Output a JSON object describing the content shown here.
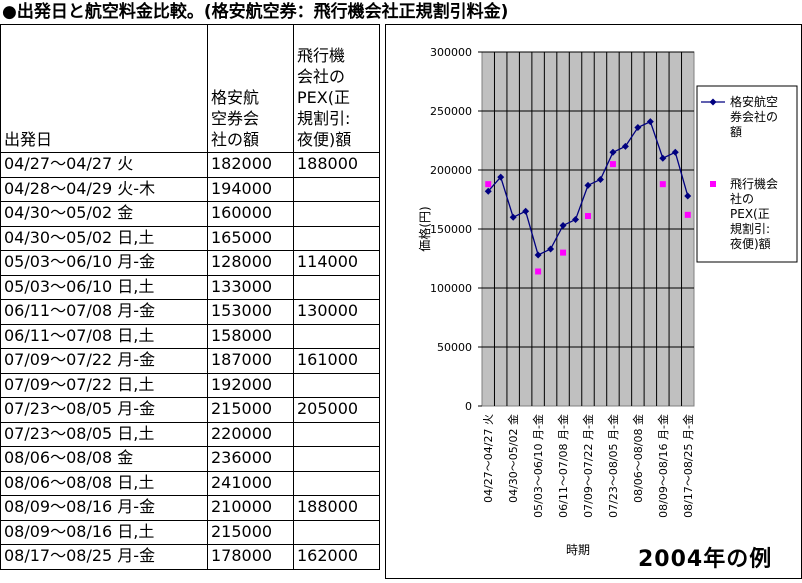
{
  "title": "●出発日と航空料金比較。(格安航空券：飛行機会社正規割引料金)",
  "table": {
    "headers": [
      "出発日",
      "格安航\n空券会\n社の額",
      "飛行機\n会社の\nPEX(正\n規割引:\n夜便)額"
    ],
    "rows": [
      [
        "04/27〜04/27 火",
        "182000",
        "188000"
      ],
      [
        "04/28〜04/29 火-木",
        "194000",
        ""
      ],
      [
        "04/30〜05/02 金",
        "160000",
        ""
      ],
      [
        "04/30〜05/02 日,土",
        "165000",
        ""
      ],
      [
        "05/03〜06/10 月-金",
        "128000",
        "114000"
      ],
      [
        "05/03〜06/10 日,土",
        "133000",
        ""
      ],
      [
        "06/11〜07/08 月-金",
        "153000",
        "130000"
      ],
      [
        "06/11〜07/08 日,土",
        "158000",
        ""
      ],
      [
        "07/09〜07/22 月-金",
        "187000",
        "161000"
      ],
      [
        "07/09〜07/22 日,土",
        "192000",
        ""
      ],
      [
        "07/23〜08/05 月-金",
        "215000",
        "205000"
      ],
      [
        "07/23〜08/05 日,土",
        "220000",
        ""
      ],
      [
        "08/06〜08/08 金",
        "236000",
        ""
      ],
      [
        "08/06〜08/08 日,土",
        "241000",
        ""
      ],
      [
        "08/09〜08/16 月-金",
        "210000",
        "188000"
      ],
      [
        "08/09〜08/16 日,土",
        "215000",
        ""
      ],
      [
        "08/17〜08/25 月-金",
        "178000",
        "162000"
      ]
    ]
  },
  "chart_data": {
    "type": "line",
    "xlabel": "時期",
    "ylabel": "価格(円)",
    "ylim": [
      0,
      300000
    ],
    "yticks": [
      "0",
      "50000",
      "100000",
      "150000",
      "200000",
      "250000",
      "300000"
    ],
    "x_tick_labels": [
      "04/27〜04/27 火",
      "04/30〜05/02 金",
      "05/03〜06/10 月-金",
      "06/11〜07/08 月-金",
      "07/09〜07/22 月-金",
      "07/23〜08/05 月-金",
      "08/06〜08/08 金",
      "08/09〜08/16 月-金",
      "08/17〜08/25 月-金"
    ],
    "categories": [
      "04/27〜04/27 火",
      "04/28〜04/29 火-木",
      "04/30〜05/02 金",
      "04/30〜05/02 日,土",
      "05/03〜06/10 月-金",
      "05/03〜06/10 日,土",
      "06/11〜07/08 月-金",
      "06/11〜07/08 日,土",
      "07/09〜07/22 月-金",
      "07/09〜07/22 日,土",
      "07/23〜08/05 月-金",
      "07/23〜08/05 日,土",
      "08/06〜08/08 金",
      "08/06〜08/08 日,土",
      "08/09〜08/16 月-金",
      "08/09〜08/16 日,土",
      "08/17〜08/25 月-金"
    ],
    "series": [
      {
        "name": "格安航空券会社の額",
        "color": "#000080",
        "marker": "diamond",
        "line": true,
        "values": [
          182000,
          194000,
          160000,
          165000,
          128000,
          133000,
          153000,
          158000,
          187000,
          192000,
          215000,
          220000,
          236000,
          241000,
          210000,
          215000,
          178000
        ]
      },
      {
        "name": "飛行機会社のPEX(正規割引:夜便)額",
        "color": "#ff00ff",
        "marker": "square",
        "line": false,
        "values": [
          188000,
          null,
          null,
          null,
          114000,
          null,
          130000,
          null,
          161000,
          null,
          205000,
          null,
          null,
          null,
          188000,
          null,
          162000
        ]
      }
    ],
    "legend_labels": [
      [
        "格安航空",
        "券会社の",
        "額"
      ],
      [
        "飛行機会",
        "社の",
        "PEX(正",
        "規割引:",
        "夜便)額"
      ]
    ],
    "plot_background": "#c0c0c0",
    "grid": true,
    "legend_position": "right"
  },
  "example_label": "2004年の例"
}
